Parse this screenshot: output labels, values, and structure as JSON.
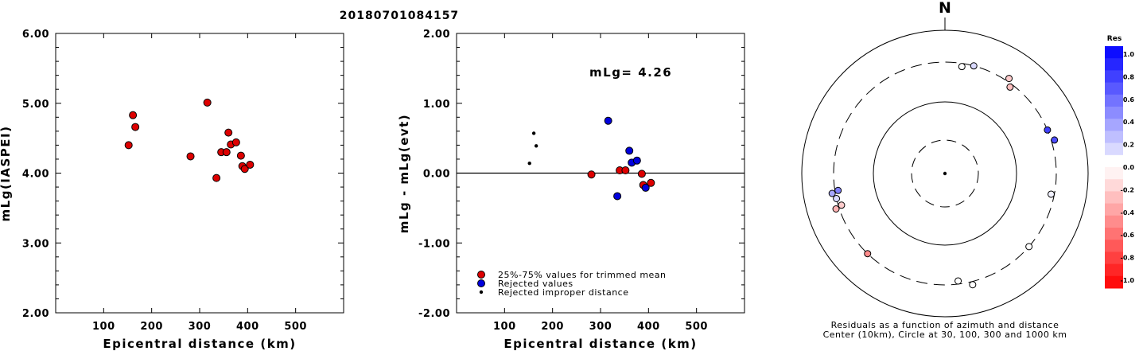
{
  "title": "20180701084157",
  "chart_data": [
    {
      "type": "scatter",
      "xlabel": "Epicentral distance (km)",
      "ylabel": "mLg(IASPEI)",
      "xlim": [
        0,
        600
      ],
      "ylim": [
        2.0,
        6.0
      ],
      "xticks": [
        "100",
        "200",
        "300",
        "400",
        "500"
      ],
      "yticks": [
        "2.00",
        "3.00",
        "4.00",
        "5.00",
        "6.00"
      ],
      "series": [
        {
          "color": "#dd0000",
          "points": [
            [
              152,
              4.4
            ],
            [
              161,
              4.83
            ],
            [
              166,
              4.66
            ],
            [
              281,
              4.24
            ],
            [
              316,
              5.01
            ],
            [
              335,
              3.93
            ],
            [
              345,
              4.3
            ],
            [
              356,
              4.3
            ],
            [
              360,
              4.58
            ],
            [
              365,
              4.41
            ],
            [
              376,
              4.44
            ],
            [
              386,
              4.25
            ],
            [
              389,
              4.1
            ],
            [
              394,
              4.06
            ],
            [
              405,
              4.12
            ]
          ]
        }
      ]
    },
    {
      "type": "scatter",
      "annotation": "mLg= 4.26",
      "xlabel": "Epicentral distance (km)",
      "ylabel": "mLg - mLg(evt)",
      "xlim": [
        0,
        600
      ],
      "ylim": [
        -2.0,
        2.0
      ],
      "xticks": [
        "100",
        "200",
        "300",
        "400",
        "500"
      ],
      "yticks": [
        "-2.00",
        "-1.00",
        "0.00",
        "1.00",
        "2.00"
      ],
      "legend": [
        {
          "label": "25%-75% values for trimmed mean",
          "color": "#dd0000"
        },
        {
          "label": "Rejected values",
          "color": "#0000dd"
        },
        {
          "label": "Rejected improper distance",
          "color": "#000000"
        }
      ],
      "series": [
        {
          "name": "25%-75% values for trimmed mean",
          "color": "#dd0000",
          "points": [
            [
              281,
              -0.02
            ],
            [
              340,
              0.04
            ],
            [
              352,
              0.04
            ],
            [
              386,
              -0.01
            ],
            [
              389,
              -0.17
            ],
            [
              405,
              -0.14
            ]
          ]
        },
        {
          "name": "Rejected values",
          "color": "#0000dd",
          "points": [
            [
              316,
              0.75
            ],
            [
              335,
              -0.33
            ],
            [
              360,
              0.32
            ],
            [
              365,
              0.15
            ],
            [
              376,
              0.18
            ],
            [
              394,
              -0.21
            ]
          ]
        },
        {
          "name": "Rejected improper distance",
          "color": "#000000",
          "points": [
            [
              152,
              0.14
            ],
            [
              161,
              0.57
            ],
            [
              166,
              0.39
            ]
          ]
        }
      ]
    },
    {
      "type": "polar-scatter",
      "north_label": "N",
      "caption_line1": "Residuals as a function of azimuth and distance",
      "caption_line2": "Center (10km), Circle at 30, 100, 300 and 1000 km",
      "colorbar_title": "Res",
      "colorbar_ticks": [
        "1.0",
        "0.8",
        "0.6",
        "0.4",
        "0.2",
        "0.0",
        "-0.2",
        "-0.4",
        "-0.6",
        "-0.8",
        "-1.0"
      ],
      "stations": [
        {
          "azimuth": 9,
          "residual": 0.02
        },
        {
          "azimuth": 15,
          "residual": 0.15
        },
        {
          "azimuth": 34,
          "residual": -0.2
        },
        {
          "azimuth": 37,
          "residual": -0.25
        },
        {
          "azimuth": 67,
          "residual": 0.75
        },
        {
          "azimuth": 73,
          "residual": 0.7
        },
        {
          "azimuth": 101,
          "residual": 0.05
        },
        {
          "azimuth": 131,
          "residual": 0.02
        },
        {
          "azimuth": 166,
          "residual": 0.03
        },
        {
          "azimuth": 173,
          "residual": 0.04
        },
        {
          "azimuth": 224,
          "residual": -0.45
        },
        {
          "azimuth": 252,
          "residual": -0.3
        },
        {
          "azimuth": 253,
          "residual": -0.2
        },
        {
          "azimuth": 257,
          "residual": 0.15
        },
        {
          "azimuth": 260,
          "residual": 0.35
        },
        {
          "azimuth": 261,
          "residual": 0.5
        }
      ]
    }
  ]
}
